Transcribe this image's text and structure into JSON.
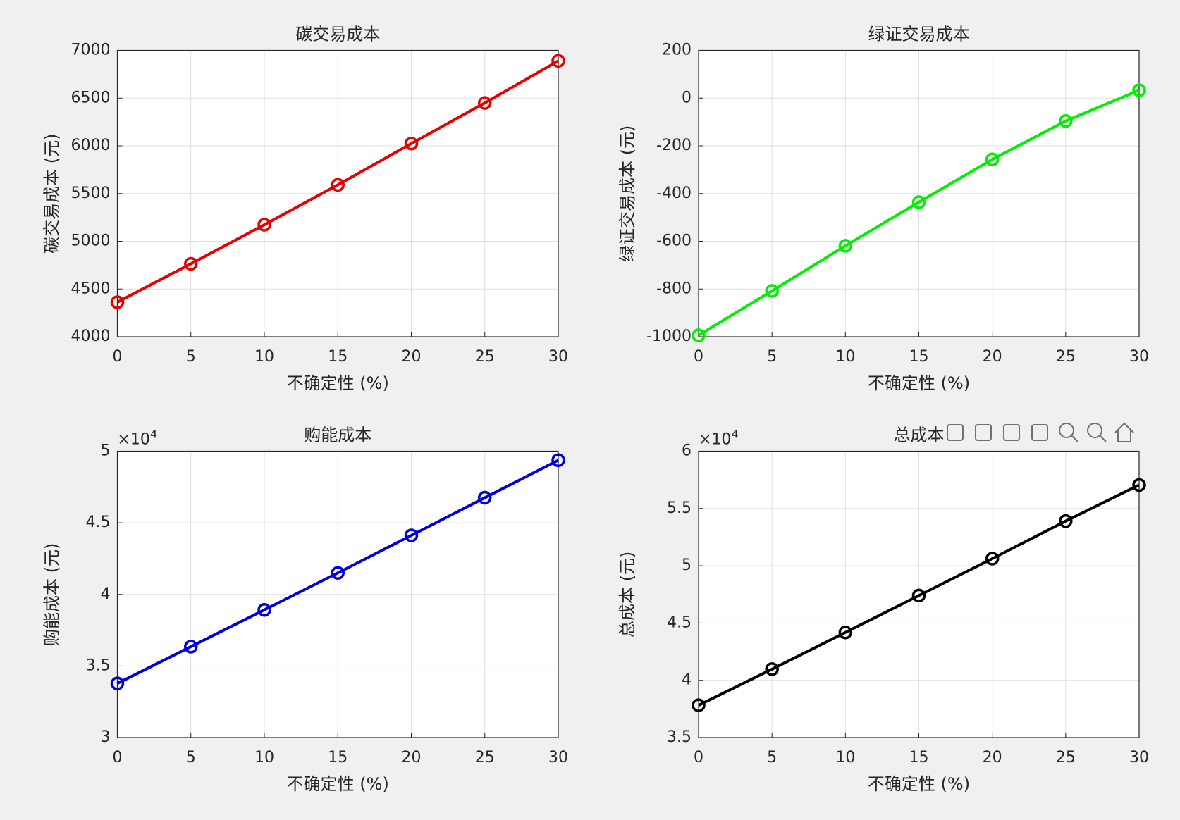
{
  "chart_data": [
    {
      "type": "line",
      "title": "碳交易成本",
      "xlabel": "不确定性 (%)",
      "ylabel": "碳交易成本 (元)",
      "x": [
        0,
        5,
        10,
        15,
        20,
        25,
        30
      ],
      "values": [
        4362,
        4764,
        5173,
        5591,
        6024,
        6449,
        6890
      ],
      "color": "#e60000",
      "xlim": [
        0,
        30
      ],
      "xticks": [
        0,
        5,
        10,
        15,
        20,
        25,
        30
      ],
      "ylim": [
        4000,
        7000
      ],
      "yticks": [
        4000,
        4500,
        5000,
        5500,
        6000,
        6500,
        7000
      ],
      "grid": true
    },
    {
      "type": "line",
      "title": "绿证交易成本",
      "xlabel": "不确定性 (%)",
      "ylabel": "绿证交易成本 (元)",
      "x": [
        0,
        5,
        10,
        15,
        20,
        25,
        30
      ],
      "values": [
        -994,
        -808,
        -619,
        -436,
        -257,
        -96,
        33
      ],
      "color": "#00ee00",
      "xlim": [
        0,
        30
      ],
      "xticks": [
        0,
        5,
        10,
        15,
        20,
        25,
        30
      ],
      "ylim": [
        -1000,
        200
      ],
      "yticks": [
        -1000,
        -800,
        -600,
        -400,
        -200,
        0,
        200
      ],
      "grid": true
    },
    {
      "type": "line",
      "title": "购能成本",
      "xlabel": "不确定性 (%)",
      "ylabel": "购能成本 (元)",
      "y_multiplier": {
        "base": "×10",
        "exponent": "4"
      },
      "x": [
        0,
        5,
        10,
        15,
        20,
        25,
        30
      ],
      "values": [
        3.378,
        3.635,
        3.892,
        4.15,
        4.412,
        4.675,
        4.937
      ],
      "color": "#0000dd",
      "xlim": [
        0,
        30
      ],
      "xticks": [
        0,
        5,
        10,
        15,
        20,
        25,
        30
      ],
      "ylim": [
        3,
        5
      ],
      "yticks": [
        3,
        3.5,
        4,
        4.5,
        5
      ],
      "grid": true
    },
    {
      "type": "line",
      "title": "总成本",
      "xlabel": "不确定性 (%)",
      "ylabel": "总成本 (元)",
      "y_multiplier": {
        "base": "×10",
        "exponent": "4"
      },
      "x": [
        0,
        5,
        10,
        15,
        20,
        25,
        30
      ],
      "values": [
        3.782,
        4.097,
        4.418,
        4.74,
        5.062,
        5.39,
        5.705
      ],
      "color": "#000000",
      "xlim": [
        0,
        30
      ],
      "xticks": [
        0,
        5,
        10,
        15,
        20,
        25,
        30
      ],
      "ylim": [
        3.5,
        6
      ],
      "yticks": [
        3.5,
        4,
        4.5,
        5,
        5.5,
        6
      ],
      "grid": true
    }
  ]
}
